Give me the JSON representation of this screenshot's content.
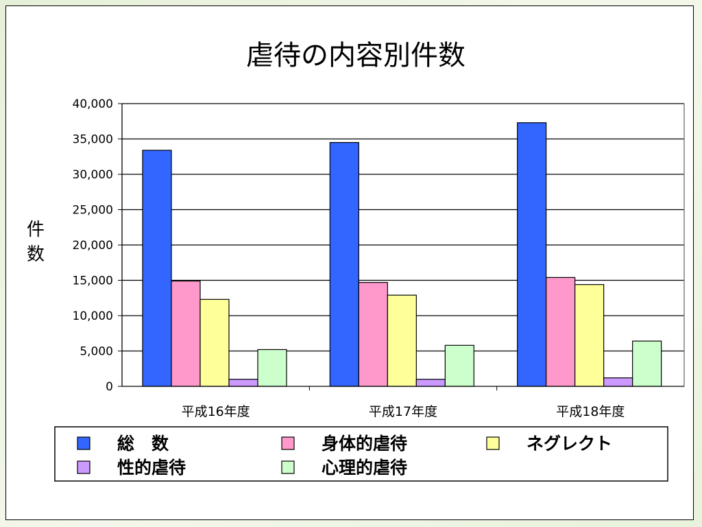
{
  "chart_data": {
    "type": "bar",
    "title": "虐待の内容別件数",
    "ylabel": "件数",
    "xlabel": "",
    "categories": [
      "平成16年度",
      "平成17年度",
      "平成18年度"
    ],
    "ylim": [
      0,
      40000
    ],
    "yticks": [
      0,
      5000,
      10000,
      15000,
      20000,
      25000,
      30000,
      35000,
      40000
    ],
    "ytick_labels": [
      "0",
      "5,000",
      "10,000",
      "15,000",
      "20,000",
      "25,000",
      "30,000",
      "35,000",
      "40,000"
    ],
    "grid": true,
    "legend_position": "bottom",
    "series": [
      {
        "name": "総　数",
        "color": "#3366ff",
        "values": [
          33400,
          34500,
          37300
        ]
      },
      {
        "name": "身体的虐待",
        "color": "#ff99cc",
        "values": [
          14900,
          14700,
          15400
        ]
      },
      {
        "name": "ネグレクト",
        "color": "#ffff99",
        "values": [
          12300,
          12900,
          14400
        ]
      },
      {
        "name": "性的虐待",
        "color": "#cc99ff",
        "values": [
          1000,
          1000,
          1200
        ]
      },
      {
        "name": "心理的虐待",
        "color": "#ccffcc",
        "values": [
          5200,
          5800,
          6400
        ]
      }
    ]
  }
}
